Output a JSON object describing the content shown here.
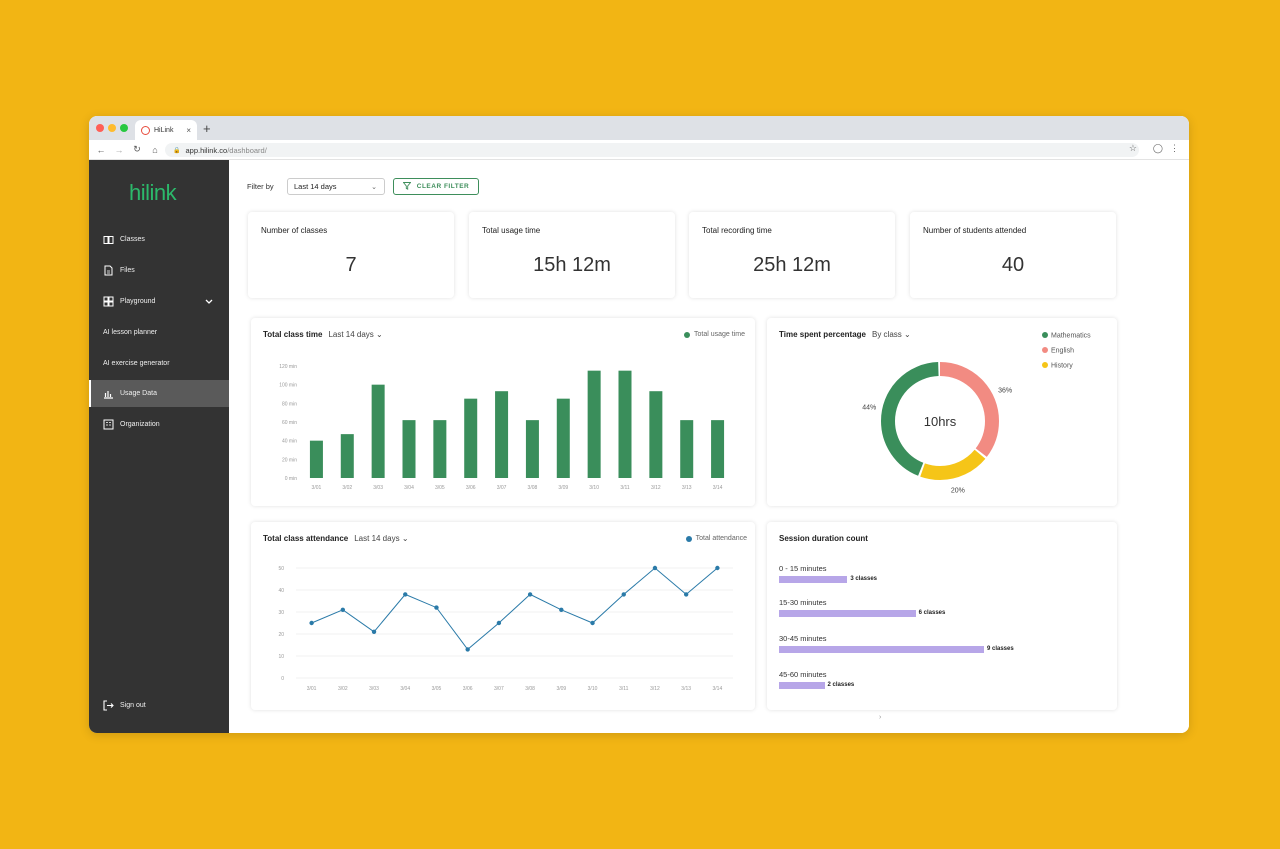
{
  "browser": {
    "tab_title": "HiLink",
    "tab_close": "×",
    "new_tab": "+",
    "url_host": "app.hilink.co",
    "url_path": "/dashboard/"
  },
  "sidebar": {
    "logo": "hilink",
    "items": [
      {
        "label": "Classes",
        "icon": "book-icon"
      },
      {
        "label": "Files",
        "icon": "file-icon"
      },
      {
        "label": "Playground",
        "icon": "grid-icon"
      },
      {
        "label": "AI lesson planner"
      },
      {
        "label": "AI exercise generator"
      },
      {
        "label": "Usage Data",
        "icon": "bar-chart-icon",
        "active": true
      },
      {
        "label": "Organization",
        "icon": "org-icon"
      }
    ],
    "signout": "Sign out"
  },
  "filter": {
    "label": "Filter by",
    "selected": "Last 14 days",
    "clear": "CLEAR FILTER"
  },
  "kpis": [
    {
      "title": "Number of classes",
      "value": "7"
    },
    {
      "title": "Total usage time",
      "value": "15h 12m"
    },
    {
      "title": "Total recording time",
      "value": "25h 12m"
    },
    {
      "title": "Number of students attended",
      "value": "40"
    }
  ],
  "class_time": {
    "title": "Total class time",
    "range": "Last 14 days",
    "legend": "Total usage time"
  },
  "time_spent": {
    "title": "Time spent percentage",
    "by": "By class",
    "center": "10hrs"
  },
  "attendance": {
    "title": "Total class attendance",
    "range": "Last 14 days",
    "legend": "Total attendance"
  },
  "session": {
    "title": "Session duration count",
    "rows": [
      {
        "label": "0 - 15 minutes",
        "count": 3,
        "text": "3 classes"
      },
      {
        "label": "15-30 minutes",
        "count": 6,
        "text": "6 classes"
      },
      {
        "label": "30-45 minutes",
        "count": 9,
        "text": "9 classes"
      },
      {
        "label": "45-60 minutes",
        "count": 2,
        "text": "2 classes"
      }
    ]
  },
  "colors": {
    "green": "#3A8E5B",
    "blue": "#2A7AA8",
    "pink": "#F28B82",
    "yellow": "#F5C518",
    "purple": "#B7A6E8"
  },
  "chart_data": [
    {
      "type": "bar",
      "title": "Total class time",
      "categories": [
        "3/01",
        "3/02",
        "3/03",
        "3/04",
        "3/05",
        "3/06",
        "3/07",
        "3/08",
        "3/09",
        "3/10",
        "3/11",
        "3/12",
        "3/13",
        "3/14"
      ],
      "series": [
        {
          "name": "Total usage time",
          "values": [
            40,
            47,
            100,
            62,
            62,
            85,
            93,
            62,
            85,
            115,
            115,
            93,
            62,
            62
          ]
        }
      ],
      "yticks": [
        "0 min",
        "20 min",
        "40 min",
        "60 min",
        "80 min",
        "100 min",
        "120 min"
      ],
      "ylim": [
        0,
        120
      ],
      "grid": false
    },
    {
      "type": "pie",
      "title": "Time spent percentage",
      "slices": [
        {
          "name": "Mathematics",
          "value": 44,
          "label": "44%"
        },
        {
          "name": "English",
          "value": 36,
          "label": "36%"
        },
        {
          "name": "History",
          "value": 20,
          "label": "20%"
        }
      ]
    },
    {
      "type": "line",
      "title": "Total class attendance",
      "x": [
        "3/01",
        "3/02",
        "3/03",
        "3/04",
        "3/05",
        "3/06",
        "3/07",
        "3/08",
        "3/09",
        "3/10",
        "3/11",
        "3/12",
        "3/13",
        "3/14"
      ],
      "series": [
        {
          "name": "Total attendance",
          "values": [
            25,
            31,
            21,
            38,
            32,
            13,
            25,
            38,
            31,
            25,
            38,
            50,
            38,
            50
          ]
        }
      ],
      "yticks": [
        "0",
        "10",
        "20",
        "30",
        "40",
        "50"
      ],
      "ylim": [
        0,
        50
      ],
      "grid": true
    },
    {
      "type": "bar",
      "title": "Session duration count",
      "categories": [
        "0 - 15 minutes",
        "15-30 minutes",
        "30-45 minutes",
        "45-60 minutes"
      ],
      "values": [
        3,
        6,
        9,
        2
      ]
    }
  ]
}
